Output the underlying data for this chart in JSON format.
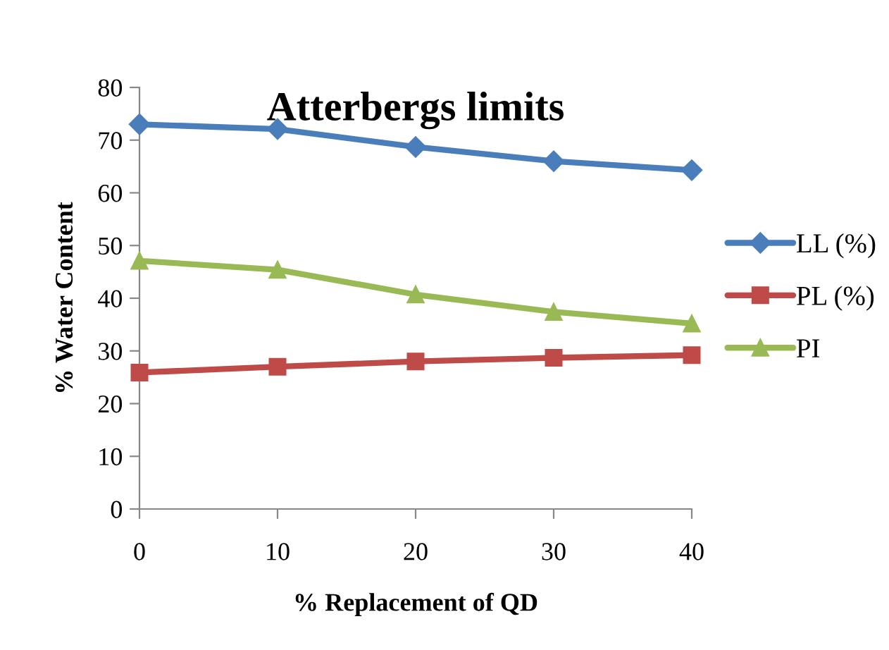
{
  "chart_data": {
    "type": "line",
    "title": "Atterbergs limits",
    "xlabel": "% Replacement of QD",
    "ylabel": "% Water Content",
    "x": [
      0,
      10,
      20,
      30,
      40
    ],
    "series": [
      {
        "name": "LL (%)",
        "color": "#4a7ebb",
        "marker": "diamond",
        "values": [
          73,
          72.1,
          68.7,
          66,
          64.3
        ]
      },
      {
        "name": "PL (%)",
        "color": "#be4b48",
        "marker": "square",
        "values": [
          25.9,
          27,
          28,
          28.7,
          29.2
        ]
      },
      {
        "name": "PI",
        "color": "#98b954",
        "marker": "triangle",
        "values": [
          47.1,
          45.4,
          40.7,
          37.4,
          35.2
        ]
      }
    ],
    "xlim": [
      0,
      40
    ],
    "xticks": [
      0,
      10,
      20,
      30,
      40
    ],
    "ylim": [
      0,
      80
    ],
    "yticks": [
      0,
      10,
      20,
      30,
      40,
      50,
      60,
      70,
      80
    ],
    "grid": false,
    "legend": "right",
    "line_style": "solid"
  }
}
